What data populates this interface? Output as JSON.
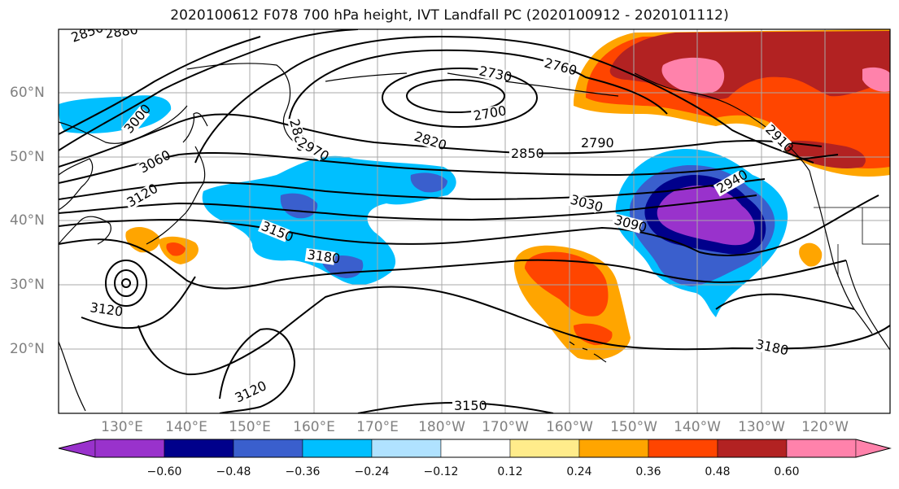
{
  "title": "2020100612 F078 700 hPa height, IVT Landfall PC (2020100912 - 2020101112)",
  "lat_labels": [
    "60°N",
    "50°N",
    "40°N",
    "30°N",
    "20°N"
  ],
  "lon_labels": [
    "130°E",
    "140°E",
    "150°E",
    "160°E",
    "170°E",
    "180°W",
    "170°W",
    "160°W",
    "150°W",
    "140°W",
    "130°W",
    "120°W"
  ],
  "contour_labels": [
    "2850",
    "2880",
    "3000",
    "2880",
    "2970",
    "3060",
    "3120",
    "2730",
    "2760",
    "2700",
    "2820",
    "2850",
    "2790",
    "2910",
    "2940",
    "3030",
    "3090",
    "3150",
    "3180",
    "3120",
    "3120",
    "3150",
    "3180"
  ],
  "colorbar": {
    "tick_labels": [
      "−0.60",
      "−0.48",
      "−0.36",
      "−0.24",
      "−0.12",
      "0.12",
      "0.24",
      "0.36",
      "0.48",
      "0.60"
    ],
    "colors": [
      "#9932cc",
      "#00008b",
      "#3a5fcd",
      "#00bfff",
      "#b0e2ff",
      "#ffffff",
      "#ffec8b",
      "#ffa500",
      "#ff4500",
      "#b22222",
      "#ff82ab"
    ]
  }
}
